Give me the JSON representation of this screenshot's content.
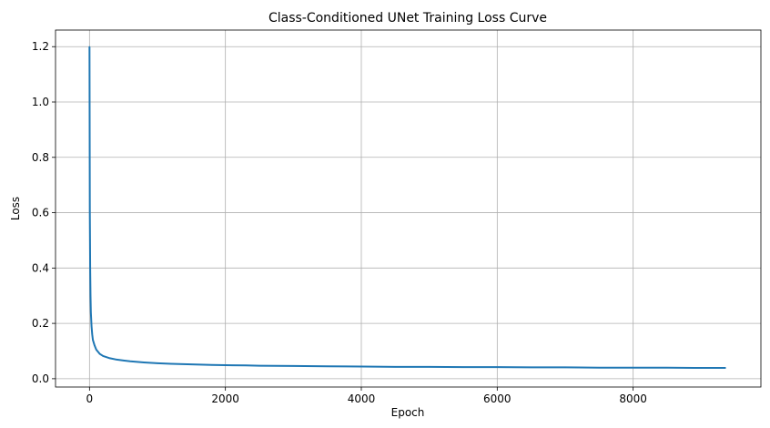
{
  "chart_data": {
    "type": "line",
    "title": "Class-Conditioned UNet Training Loss Curve",
    "xlabel": "Epoch",
    "ylabel": "Loss",
    "xlim": [
      -500,
      9880
    ],
    "ylim": [
      -0.03,
      1.26
    ],
    "xticks": [
      0,
      2000,
      4000,
      6000,
      8000
    ],
    "yticks": [
      0.0,
      0.2,
      0.4,
      0.6,
      0.8,
      1.0,
      1.2
    ],
    "xtick_labels": [
      "0",
      "2000",
      "4000",
      "6000",
      "8000"
    ],
    "ytick_labels": [
      "0.0",
      "0.2",
      "0.4",
      "0.6",
      "0.8",
      "1.0",
      "1.2"
    ],
    "grid": true,
    "series": [
      {
        "color": "#1f77b4",
        "x": [
          0,
          5,
          10,
          15,
          20,
          30,
          40,
          50,
          75,
          100,
          150,
          200,
          300,
          400,
          500,
          600,
          700,
          800,
          1000,
          1200,
          1500,
          1800,
          2000,
          2300,
          2500,
          3000,
          3500,
          4000,
          4500,
          5000,
          5500,
          6000,
          6500,
          7000,
          7500,
          8000,
          8500,
          9000,
          9360
        ],
        "values": [
          1.2,
          0.6,
          0.4,
          0.3,
          0.24,
          0.19,
          0.16,
          0.14,
          0.12,
          0.105,
          0.09,
          0.082,
          0.074,
          0.069,
          0.066,
          0.063,
          0.061,
          0.059,
          0.056,
          0.054,
          0.052,
          0.05,
          0.049,
          0.048,
          0.047,
          0.046,
          0.045,
          0.044,
          0.043,
          0.043,
          0.042,
          0.042,
          0.041,
          0.041,
          0.04,
          0.04,
          0.04,
          0.039,
          0.039
        ]
      }
    ]
  }
}
